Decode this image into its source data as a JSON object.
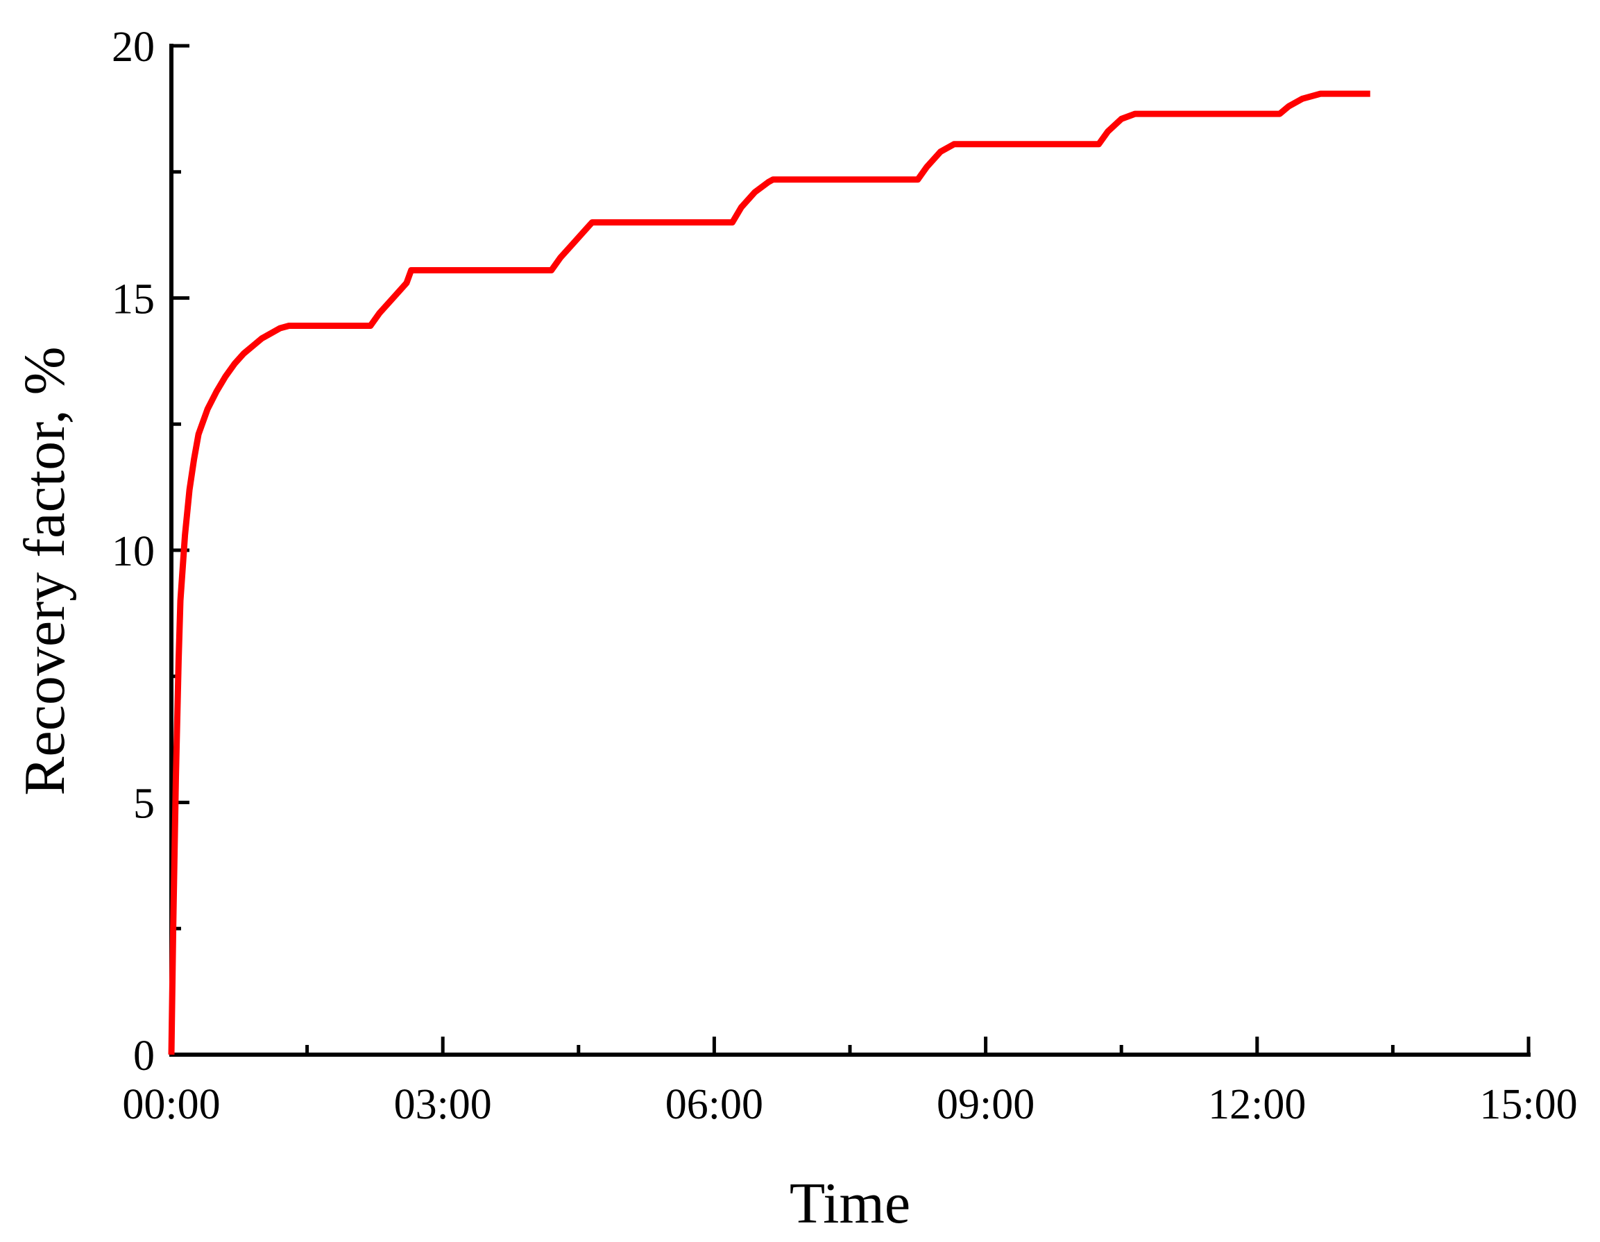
{
  "chart_data": {
    "type": "line",
    "title": "",
    "xlabel": "Time",
    "ylabel": "Recovery factor, %",
    "x_unit": "hours",
    "xlim": [
      0,
      15
    ],
    "ylim": [
      0,
      20
    ],
    "x_tick_labels": [
      "00:00",
      "03:00",
      "06:00",
      "09:00",
      "12:00",
      "15:00"
    ],
    "x_tick_values": [
      0,
      3,
      6,
      9,
      12,
      15
    ],
    "y_tick_labels": [
      "0",
      "5",
      "10",
      "15",
      "20"
    ],
    "y_tick_values": [
      0,
      5,
      10,
      15,
      20
    ],
    "grid": false,
    "legend": "none",
    "series": [
      {
        "color": "#ff0000",
        "x": [
          0.0,
          0.02,
          0.05,
          0.08,
          0.1,
          0.15,
          0.2,
          0.25,
          0.3,
          0.4,
          0.5,
          0.6,
          0.7,
          0.8,
          0.9,
          1.0,
          1.1,
          1.2,
          1.3,
          2.2,
          2.3,
          2.45,
          2.6,
          2.65,
          4.2,
          4.3,
          4.45,
          4.6,
          4.65,
          6.2,
          6.3,
          6.45,
          6.6,
          6.65,
          8.25,
          8.35,
          8.5,
          8.65,
          8.75,
          10.25,
          10.35,
          10.5,
          10.65,
          10.7,
          12.25,
          12.35,
          12.5,
          12.7,
          12.8,
          13.25
        ],
        "y": [
          0.0,
          2.5,
          5.5,
          7.8,
          9.0,
          10.3,
          11.2,
          11.8,
          12.3,
          12.8,
          13.15,
          13.45,
          13.7,
          13.9,
          14.05,
          14.2,
          14.3,
          14.4,
          14.45,
          14.45,
          14.7,
          15.0,
          15.3,
          15.55,
          15.55,
          15.8,
          16.1,
          16.4,
          16.5,
          16.5,
          16.8,
          17.1,
          17.3,
          17.35,
          17.35,
          17.6,
          17.9,
          18.05,
          18.05,
          18.05,
          18.3,
          18.55,
          18.65,
          18.65,
          18.65,
          18.8,
          18.95,
          19.05,
          19.05,
          19.05
        ]
      }
    ]
  }
}
